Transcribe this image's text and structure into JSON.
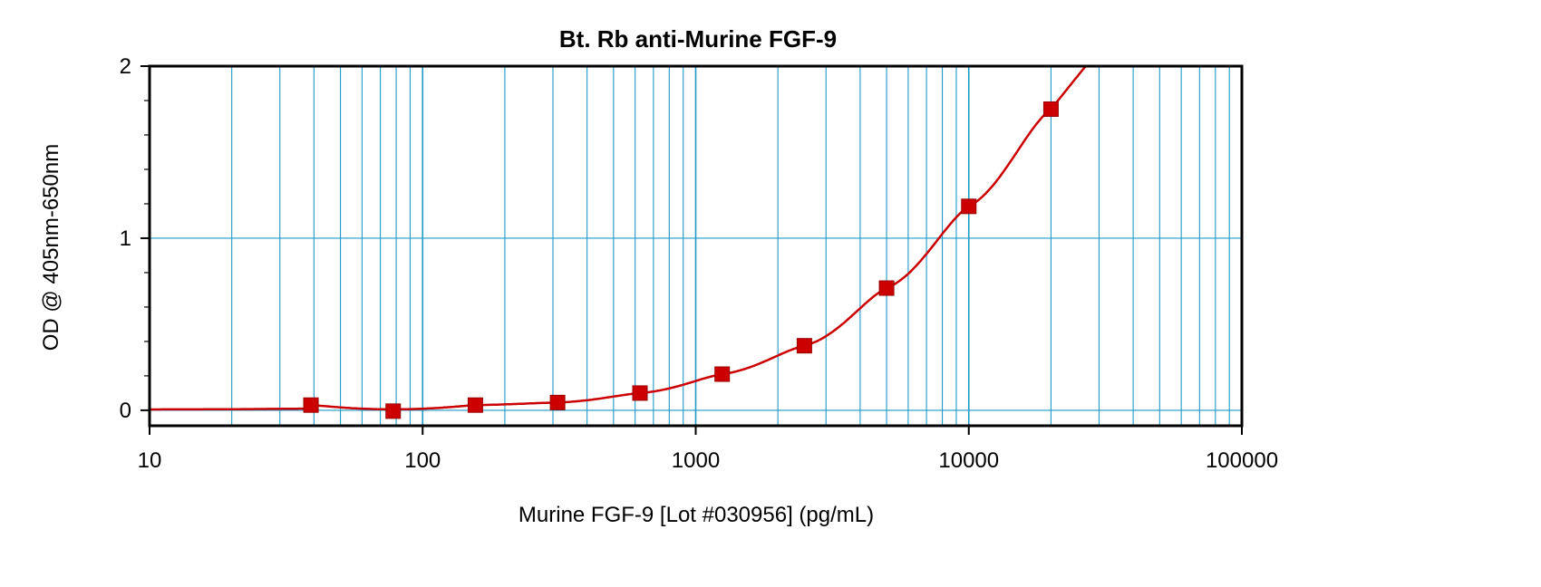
{
  "chart_data": {
    "type": "scatter",
    "title": "Bt. Rb anti-Murine FGF-9",
    "xlabel": "Murine FGF-9 [Lot #030956] (pg/mL)",
    "ylabel": "OD @ 405nm-650nm",
    "x_scale": "log",
    "xlim": [
      10,
      100000
    ],
    "ylim": [
      -0.09,
      2
    ],
    "x_ticks": [
      "10",
      "100",
      "1000",
      "10000",
      "100000"
    ],
    "y_ticks": [
      "0",
      "1",
      "2"
    ],
    "grid": true,
    "series": [
      {
        "x": [
          39,
          78,
          156,
          312,
          625,
          1250,
          2500,
          5000,
          10000,
          20000
        ],
        "y": [
          0.03,
          -0.005,
          0.03,
          0.045,
          0.1,
          0.21,
          0.375,
          0.71,
          1.185,
          1.75
        ],
        "marker": "square",
        "fit_curve": true
      }
    ],
    "colors": {
      "grid": "#1e9ac8",
      "series": "#cc0000",
      "frame": "#000000"
    }
  }
}
